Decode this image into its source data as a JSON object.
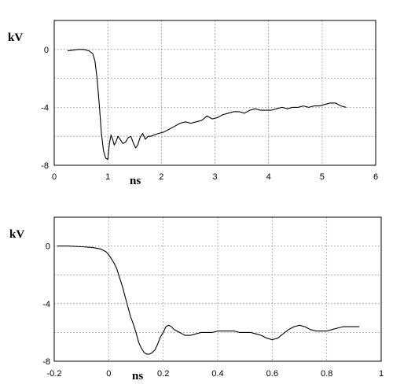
{
  "chart_data": [
    {
      "type": "line",
      "title": "",
      "xlabel": "ns",
      "ylabel": "kV",
      "xlim": [
        0,
        6
      ],
      "ylim": [
        -8,
        2
      ],
      "x_ticks": [
        0,
        1,
        2,
        3,
        4,
        5,
        6
      ],
      "x_tick_labels": [
        "0",
        "1",
        "2",
        "3",
        "4",
        "5",
        "6"
      ],
      "y_ticks": [
        0,
        -4,
        -8
      ],
      "y_tick_labels": [
        "0",
        "-4",
        "-8"
      ],
      "y_grid": [
        2,
        0,
        -2,
        -4,
        -6,
        -8
      ],
      "grid": true,
      "series": [
        {
          "x": [
            0.25,
            0.35,
            0.45,
            0.55,
            0.65,
            0.72,
            0.76,
            0.8,
            0.84,
            0.88,
            0.92,
            0.96,
            1.0,
            1.03,
            1.06,
            1.09,
            1.12,
            1.15,
            1.19,
            1.23,
            1.28,
            1.33,
            1.38,
            1.43,
            1.48,
            1.52,
            1.56,
            1.6,
            1.65,
            1.7,
            1.75,
            1.8,
            1.87,
            1.95,
            2.05,
            2.15,
            2.25,
            2.35,
            2.45,
            2.55,
            2.65,
            2.75,
            2.85,
            2.95,
            3.05,
            3.15,
            3.25,
            3.35,
            3.45,
            3.55,
            3.65,
            3.75,
            3.85,
            3.95,
            4.05,
            4.15,
            4.25,
            4.35,
            4.45,
            4.55,
            4.65,
            4.75,
            4.85,
            4.95,
            5.05,
            5.15,
            5.25,
            5.35,
            5.45
          ],
          "y": [
            -0.1,
            -0.05,
            0.0,
            0.0,
            -0.1,
            -0.3,
            -0.8,
            -2.0,
            -3.8,
            -5.8,
            -7.0,
            -7.5,
            -7.6,
            -6.5,
            -5.9,
            -6.2,
            -6.6,
            -6.4,
            -6.0,
            -6.2,
            -6.5,
            -6.4,
            -6.1,
            -6.0,
            -6.5,
            -6.8,
            -6.6,
            -6.1,
            -5.8,
            -6.2,
            -6.0,
            -6.0,
            -5.9,
            -5.8,
            -5.7,
            -5.5,
            -5.3,
            -5.1,
            -5.0,
            -5.1,
            -5.0,
            -4.9,
            -4.6,
            -4.8,
            -4.7,
            -4.5,
            -4.4,
            -4.3,
            -4.3,
            -4.4,
            -4.2,
            -4.1,
            -4.2,
            -4.2,
            -4.2,
            -4.1,
            -4.0,
            -4.1,
            -4.0,
            -4.0,
            -3.9,
            -4.0,
            -3.9,
            -3.9,
            -3.8,
            -3.7,
            -3.7,
            -3.9,
            -4.0
          ]
        }
      ]
    },
    {
      "type": "line",
      "title": "",
      "xlabel": "ns",
      "ylabel": "kV",
      "xlim": [
        -0.2,
        1
      ],
      "ylim": [
        -8,
        2
      ],
      "x_ticks": [
        -0.2,
        0,
        0.2,
        0.4,
        0.6,
        0.8,
        1
      ],
      "x_tick_labels": [
        "-0.2",
        "0",
        "0.2",
        "0.4",
        "0.6",
        "0.8",
        "1"
      ],
      "y_ticks": [
        0,
        -4,
        -8
      ],
      "y_tick_labels": [
        "0",
        "-4",
        "-8"
      ],
      "y_grid": [
        2,
        0,
        -2,
        -4,
        -6,
        -8
      ],
      "grid": true,
      "series": [
        {
          "x": [
            -0.19,
            -0.15,
            -0.1,
            -0.06,
            -0.03,
            -0.01,
            0.0,
            0.01,
            0.02,
            0.03,
            0.04,
            0.05,
            0.06,
            0.07,
            0.08,
            0.09,
            0.1,
            0.11,
            0.12,
            0.13,
            0.14,
            0.15,
            0.16,
            0.17,
            0.18,
            0.19,
            0.2,
            0.21,
            0.22,
            0.23,
            0.24,
            0.25,
            0.26,
            0.27,
            0.28,
            0.3,
            0.32,
            0.34,
            0.36,
            0.38,
            0.4,
            0.42,
            0.44,
            0.46,
            0.48,
            0.5,
            0.52,
            0.54,
            0.56,
            0.58,
            0.6,
            0.62,
            0.64,
            0.66,
            0.68,
            0.7,
            0.72,
            0.74,
            0.76,
            0.78,
            0.8,
            0.82,
            0.84,
            0.86,
            0.88,
            0.9,
            0.92
          ],
          "y": [
            0.0,
            0.0,
            -0.05,
            -0.1,
            -0.2,
            -0.4,
            -0.6,
            -0.9,
            -1.2,
            -1.6,
            -2.2,
            -2.8,
            -3.5,
            -4.2,
            -4.9,
            -5.4,
            -6.0,
            -6.7,
            -7.1,
            -7.4,
            -7.5,
            -7.5,
            -7.4,
            -7.2,
            -6.8,
            -6.3,
            -6.0,
            -5.6,
            -5.5,
            -5.6,
            -5.8,
            -5.9,
            -6.0,
            -6.1,
            -6.2,
            -6.2,
            -6.1,
            -6.0,
            -6.0,
            -6.0,
            -5.9,
            -5.9,
            -5.9,
            -5.9,
            -6.0,
            -6.0,
            -6.0,
            -6.1,
            -6.2,
            -6.4,
            -6.5,
            -6.4,
            -6.1,
            -5.8,
            -5.6,
            -5.5,
            -5.6,
            -5.8,
            -5.9,
            -5.9,
            -5.9,
            -5.8,
            -5.7,
            -5.6,
            -5.6,
            -5.6,
            -5.6
          ]
        }
      ]
    }
  ]
}
